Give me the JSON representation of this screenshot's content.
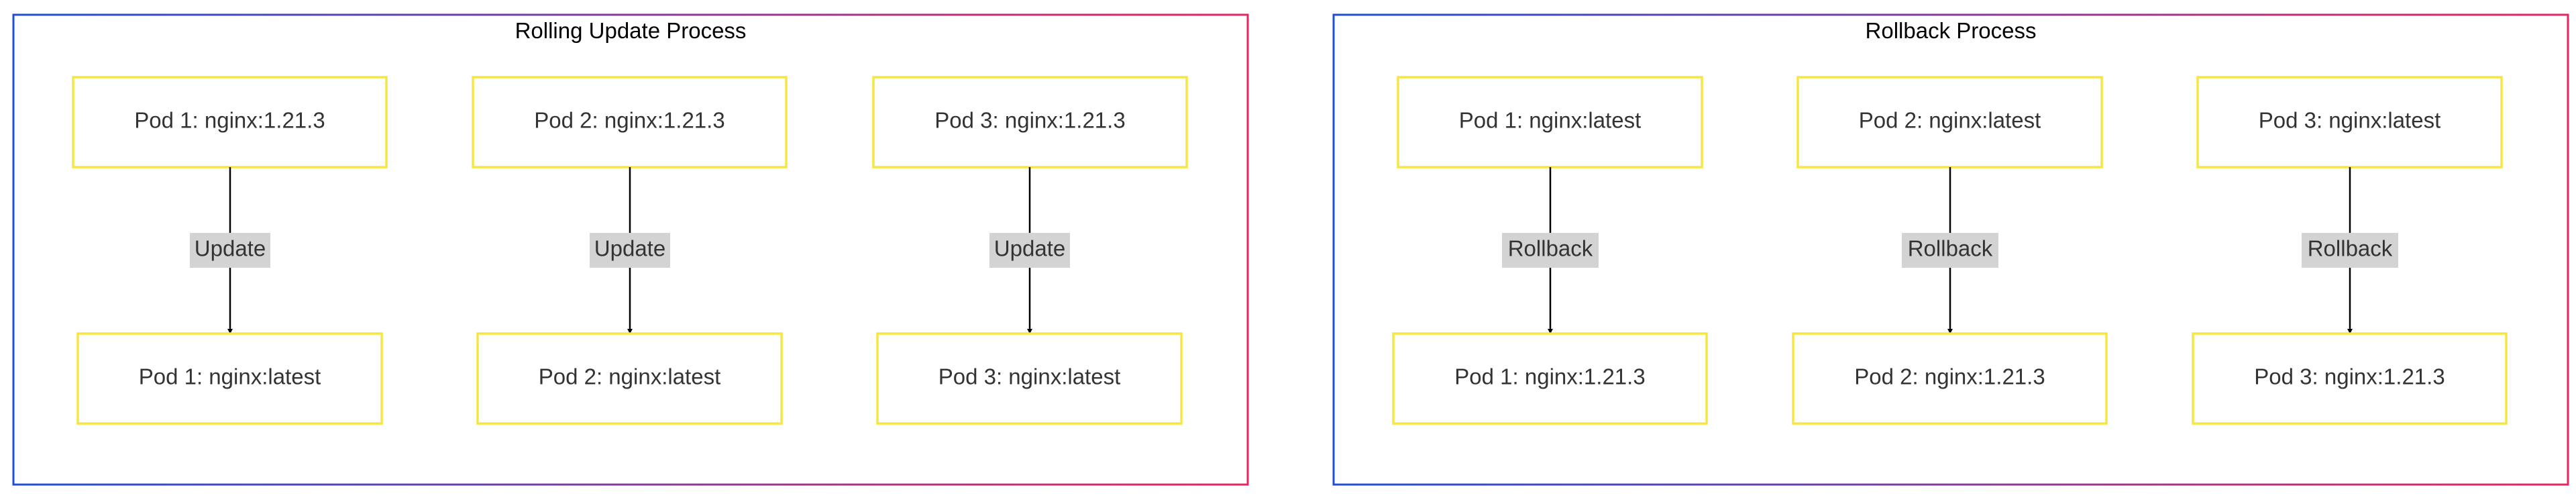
{
  "colors": {
    "cluster_border_start": "#1f4fd6",
    "cluster_border_end": "#e8255e",
    "node_border": "#f5e642",
    "edge_label_background": "#d3d3d3",
    "edge_color": "#000000"
  },
  "clusters": [
    {
      "title": "Rolling Update Process",
      "edges": [
        {
          "from": "Pod 1: nginx:1.21.3",
          "to": "Pod 1: nginx:latest",
          "label": "Update"
        },
        {
          "from": "Pod 2: nginx:1.21.3",
          "to": "Pod 2: nginx:latest",
          "label": "Update"
        },
        {
          "from": "Pod 3: nginx:1.21.3",
          "to": "Pod 3: nginx:latest",
          "label": "Update"
        }
      ]
    },
    {
      "title": "Rollback Process",
      "edges": [
        {
          "from": "Pod 1: nginx:latest",
          "to": "Pod 1: nginx:1.21.3",
          "label": "Rollback"
        },
        {
          "from": "Pod 2: nginx:latest",
          "to": "Pod 2: nginx:1.21.3",
          "label": "Rollback"
        },
        {
          "from": "Pod 3: nginx:latest",
          "to": "Pod 3: nginx:1.21.3",
          "label": "Rollback"
        }
      ]
    }
  ]
}
